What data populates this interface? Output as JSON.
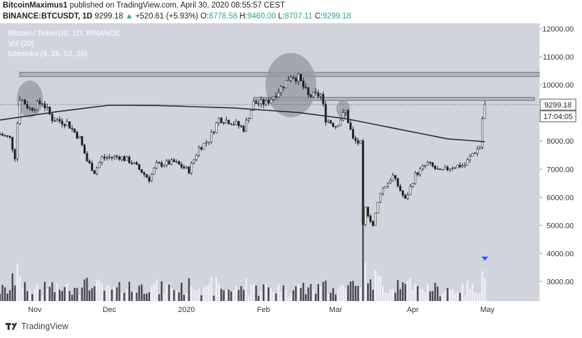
{
  "header": {
    "author": "BitcoinMaximus1",
    "published_text": "published on TradingView.com, April 30, 2020 08:55:57 CEST",
    "symbol": "BINANCE:BTCUSDT, 1D",
    "last": "9299.18",
    "change": "+520.61 (+5.93%)",
    "o_label": "O:",
    "o_value": "8778.58",
    "h_label": "H:",
    "h_value": "9460.00",
    "l_label": "L:",
    "l_value": "8707.11",
    "c_label": "C:",
    "c_value": "9299.18"
  },
  "legend": {
    "title": "Bitcoin / TetherUS, 1D, BINANCE",
    "vol": "Vol (20)",
    "ichimoku": "Ichimoku (9, 26, 52, 26)"
  },
  "price_tag": {
    "price": "9299.18",
    "countdown": "17:04:05"
  },
  "footer": {
    "brand": "TradingView"
  },
  "colors": {
    "background": "#d1d4dc",
    "candle_up": "#ffffff",
    "candle_down": "#1e1e1e",
    "ma_line": "#2a2a2a",
    "zone": "#b2b5be",
    "ellipse": "#9598a1",
    "marker": "#2962ff",
    "accent_up": "#26a69a"
  },
  "chart_data": {
    "type": "candlestick",
    "title": "Bitcoin / TetherUS, 1D, BINANCE",
    "y_ticks": [
      3000,
      4000,
      5000,
      6000,
      7000,
      8000,
      9000,
      10000,
      11000,
      12000
    ],
    "y_tick_labels": [
      "3000.00",
      "4000.00",
      "5000.00",
      "6000.00",
      "7000.00",
      "8000.00",
      "9000.00",
      "10000.00",
      "11000.00",
      "12000.00"
    ],
    "x_tick_labels": [
      "Nov",
      "Dec",
      "2020",
      "Feb",
      "Mar",
      "Apr",
      "May"
    ],
    "x_tick_dates": [
      "2019-11-01",
      "2019-12-01",
      "2020-01-01",
      "2020-02-01",
      "2020-03-01",
      "2020-04-01",
      "2020-05-01"
    ],
    "date_range": [
      "2019-10-18",
      "2020-05-22"
    ],
    "ylim": [
      2300,
      12200
    ],
    "last_price": 9299.18,
    "resistance_zones": [
      [
        10300,
        10450
      ],
      [
        9450,
        9560
      ]
    ],
    "close_path": [
      {
        "date": "2019-10-18",
        "close": 8250
      },
      {
        "date": "2019-10-22",
        "close": 8100
      },
      {
        "date": "2019-10-24",
        "close": 7450
      },
      {
        "date": "2019-10-25",
        "close": 8650
      },
      {
        "date": "2019-10-26",
        "close": 9550
      },
      {
        "date": "2019-10-30",
        "close": 9150
      },
      {
        "date": "2019-11-04",
        "close": 9400
      },
      {
        "date": "2019-11-08",
        "close": 8800
      },
      {
        "date": "2019-11-14",
        "close": 8650
      },
      {
        "date": "2019-11-19",
        "close": 8100
      },
      {
        "date": "2019-11-22",
        "close": 7300
      },
      {
        "date": "2019-11-25",
        "close": 6900
      },
      {
        "date": "2019-11-28",
        "close": 7400
      },
      {
        "date": "2019-12-05",
        "close": 7450
      },
      {
        "date": "2019-12-10",
        "close": 7250
      },
      {
        "date": "2019-12-17",
        "close": 6650
      },
      {
        "date": "2019-12-20",
        "close": 7150
      },
      {
        "date": "2019-12-27",
        "close": 7250
      },
      {
        "date": "2020-01-02",
        "close": 6950
      },
      {
        "date": "2020-01-06",
        "close": 7750
      },
      {
        "date": "2020-01-10",
        "close": 8050
      },
      {
        "date": "2020-01-14",
        "close": 8800
      },
      {
        "date": "2020-01-19",
        "close": 8700
      },
      {
        "date": "2020-01-24",
        "close": 8450
      },
      {
        "date": "2020-01-28",
        "close": 9350
      },
      {
        "date": "2020-02-02",
        "close": 9350
      },
      {
        "date": "2020-02-08",
        "close": 9900
      },
      {
        "date": "2020-02-12",
        "close": 10350
      },
      {
        "date": "2020-02-15",
        "close": 10250
      },
      {
        "date": "2020-02-19",
        "close": 9600
      },
      {
        "date": "2020-02-24",
        "close": 9650
      },
      {
        "date": "2020-02-26",
        "close": 8800
      },
      {
        "date": "2020-03-01",
        "close": 8550
      },
      {
        "date": "2020-03-05",
        "close": 9050
      },
      {
        "date": "2020-03-08",
        "close": 8050
      },
      {
        "date": "2020-03-11",
        "close": 7900
      },
      {
        "date": "2020-03-12",
        "close": 4950
      },
      {
        "date": "2020-03-13",
        "close": 5600
      },
      {
        "date": "2020-03-16",
        "close": 5000
      },
      {
        "date": "2020-03-19",
        "close": 6200
      },
      {
        "date": "2020-03-24",
        "close": 6750
      },
      {
        "date": "2020-03-29",
        "close": 5900
      },
      {
        "date": "2020-04-02",
        "close": 6800
      },
      {
        "date": "2020-04-07",
        "close": 7200
      },
      {
        "date": "2020-04-12",
        "close": 6900
      },
      {
        "date": "2020-04-17",
        "close": 7100
      },
      {
        "date": "2020-04-22",
        "close": 7150
      },
      {
        "date": "2020-04-25",
        "close": 7550
      },
      {
        "date": "2020-04-28",
        "close": 7800
      },
      {
        "date": "2020-04-29",
        "close": 8800
      },
      {
        "date": "2020-04-30",
        "close": 9299
      }
    ],
    "ma_path": [
      {
        "date": "2019-10-18",
        "value": 8750
      },
      {
        "date": "2019-11-10",
        "value": 9050
      },
      {
        "date": "2019-12-01",
        "value": 9280
      },
      {
        "date": "2019-12-20",
        "value": 9270
      },
      {
        "date": "2020-01-20",
        "value": 9180
      },
      {
        "date": "2020-02-15",
        "value": 9020
      },
      {
        "date": "2020-03-05",
        "value": 8800
      },
      {
        "date": "2020-03-25",
        "value": 8450
      },
      {
        "date": "2020-04-15",
        "value": 8080
      },
      {
        "date": "2020-04-30",
        "value": 7980
      }
    ],
    "ellipses": [
      {
        "date": "2019-10-30",
        "price": 9500
      },
      {
        "date": "2020-02-12",
        "price": 10000
      },
      {
        "date": "2020-03-04",
        "price": 9150
      }
    ]
  }
}
